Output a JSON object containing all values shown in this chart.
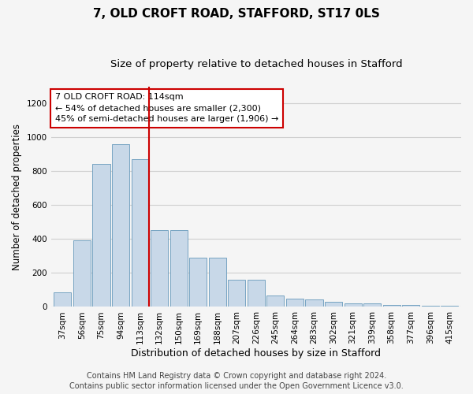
{
  "title": "7, OLD CROFT ROAD, STAFFORD, ST17 0LS",
  "subtitle": "Size of property relative to detached houses in Stafford",
  "xlabel": "Distribution of detached houses by size in Stafford",
  "ylabel": "Number of detached properties",
  "footer_line1": "Contains HM Land Registry data © Crown copyright and database right 2024.",
  "footer_line2": "Contains public sector information licensed under the Open Government Licence v3.0.",
  "annotation_line1": "7 OLD CROFT ROAD: 114sqm",
  "annotation_line2": "← 54% of detached houses are smaller (2,300)",
  "annotation_line3": "45% of semi-detached houses are larger (1,906) →",
  "highlight_bar_index": 4,
  "categories": [
    "37sqm",
    "56sqm",
    "75sqm",
    "94sqm",
    "113sqm",
    "132sqm",
    "150sqm",
    "169sqm",
    "188sqm",
    "207sqm",
    "226sqm",
    "245sqm",
    "264sqm",
    "283sqm",
    "302sqm",
    "321sqm",
    "339sqm",
    "358sqm",
    "377sqm",
    "396sqm",
    "415sqm"
  ],
  "values": [
    85,
    395,
    845,
    960,
    870,
    455,
    455,
    290,
    290,
    160,
    160,
    65,
    50,
    45,
    30,
    20,
    20,
    10,
    10,
    5,
    5
  ],
  "bar_color": "#c8d8e8",
  "bar_edge_color": "#6699bb",
  "highlight_line_color": "#cc0000",
  "annotation_box_edge_color": "#cc0000",
  "annotation_box_face_color": "#ffffff",
  "grid_color": "#d0d0d0",
  "bg_color": "#f5f5f5",
  "ylim": [
    0,
    1300
  ],
  "yticks": [
    0,
    200,
    400,
    600,
    800,
    1000,
    1200
  ],
  "title_fontsize": 11,
  "subtitle_fontsize": 9.5,
  "ylabel_fontsize": 8.5,
  "xlabel_fontsize": 9,
  "tick_fontsize": 7.5,
  "annotation_fontsize": 8,
  "footer_fontsize": 7
}
